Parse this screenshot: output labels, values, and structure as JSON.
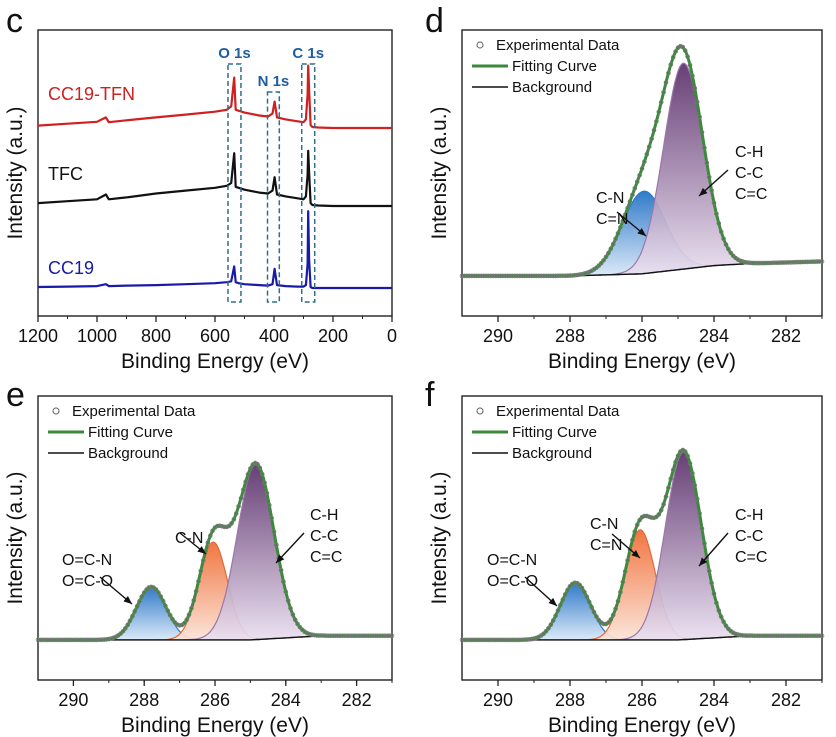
{
  "colors": {
    "experimental": "#777777",
    "fitting": "#3a8a3a",
    "background_line": "#111111",
    "blue_fill_top": "#1f6fc4",
    "blue_fill_bottom": "#d8e8f8",
    "orange_fill_top": "#f06a32",
    "orange_fill_bottom": "#fbe3d6",
    "purple_fill_top": "#5a2f6a",
    "purple_fill_bottom": "#eadff0",
    "survey_red": "#d02020",
    "survey_black": "#111111",
    "survey_blue": "#1a1aa8",
    "peak_box": "#2e6f8a",
    "peak_label": "#1e5fa0"
  },
  "chart_data": [
    {
      "panel_letter": "c",
      "type": "line",
      "xlabel": "Binding Energy (eV)",
      "ylabel": "Intensity (a.u.)",
      "xlim": [
        1200,
        0
      ],
      "x_reversed": true,
      "xticks": [
        "1200",
        "1000",
        "800",
        "600",
        "400",
        "200",
        "0"
      ],
      "series": [
        {
          "name": "CC19-TFN",
          "offset": 2.0,
          "color": "#d02020",
          "x": [
            1200,
            1100,
            1000,
            970,
            960,
            900,
            800,
            700,
            600,
            560,
            545,
            535,
            530,
            520,
            500,
            450,
            420,
            405,
            398,
            390,
            360,
            320,
            300,
            292,
            286,
            284,
            281,
            276,
            270,
            250,
            200,
            100,
            0
          ],
          "y": [
            0.05,
            0.09,
            0.13,
            0.22,
            0.12,
            0.16,
            0.22,
            0.28,
            0.34,
            0.38,
            0.45,
            1.05,
            0.38,
            0.36,
            0.32,
            0.26,
            0.24,
            0.3,
            0.55,
            0.22,
            0.18,
            0.14,
            0.12,
            0.18,
            0.7,
            1.3,
            0.8,
            0.06,
            0.02,
            0.01,
            0.0,
            0.0,
            0.0
          ]
        },
        {
          "name": "TFC",
          "offset": 1.0,
          "color": "#111111",
          "x": [
            1200,
            1100,
            1000,
            970,
            960,
            900,
            800,
            700,
            600,
            560,
            545,
            535,
            530,
            520,
            500,
            450,
            420,
            405,
            398,
            390,
            360,
            320,
            300,
            292,
            286,
            284,
            281,
            276,
            270,
            250,
            200,
            100,
            0
          ],
          "y": [
            0.06,
            0.1,
            0.14,
            0.24,
            0.14,
            0.18,
            0.26,
            0.32,
            0.38,
            0.42,
            0.48,
            1.1,
            0.4,
            0.38,
            0.34,
            0.28,
            0.26,
            0.32,
            0.6,
            0.24,
            0.2,
            0.16,
            0.14,
            0.2,
            0.65,
            1.15,
            0.7,
            0.06,
            0.02,
            0.01,
            0.0,
            0.0,
            0.0
          ]
        },
        {
          "name": "CC19",
          "offset": 0.0,
          "color": "#1a1aa8",
          "x": [
            1200,
            1100,
            1000,
            970,
            960,
            900,
            800,
            700,
            600,
            560,
            545,
            535,
            530,
            520,
            500,
            450,
            420,
            405,
            398,
            390,
            360,
            320,
            300,
            292,
            286,
            284,
            281,
            276,
            270,
            250,
            200,
            100,
            0
          ],
          "y": [
            0.02,
            0.03,
            0.04,
            0.08,
            0.04,
            0.05,
            0.06,
            0.08,
            0.1,
            0.12,
            0.14,
            0.45,
            0.12,
            0.1,
            0.08,
            0.06,
            0.05,
            0.08,
            0.4,
            0.06,
            0.04,
            0.03,
            0.03,
            0.06,
            0.5,
            1.6,
            0.6,
            0.02,
            0.0,
            0.0,
            0.0,
            0.0,
            0.0
          ]
        }
      ],
      "peak_markers": [
        {
          "label": "O 1s",
          "x_range": [
            556,
            512
          ]
        },
        {
          "label": "N 1s",
          "x_range": [
            422,
            382
          ]
        },
        {
          "label": "C 1s",
          "x_range": [
            306,
            262
          ]
        }
      ]
    },
    {
      "panel_letter": "d",
      "type": "line",
      "xlabel": "Binding Energy (eV)",
      "ylabel": "Intensity (a.u.)",
      "xlim": [
        291,
        281
      ],
      "x_reversed": true,
      "xticks": [
        "290",
        "288",
        "286",
        "284",
        "282"
      ],
      "legend": [
        "Experimental Data",
        "Fitting Curve",
        "Background"
      ],
      "background": {
        "x": [
          291,
          288,
          286,
          285,
          284,
          283,
          281
        ],
        "y": [
          0.02,
          0.02,
          0.03,
          0.05,
          0.07,
          0.08,
          0.09
        ]
      },
      "components": [
        {
          "label": "C-N\nC=N",
          "color": "blue",
          "center": 285.95,
          "sigma": 0.6,
          "height": 0.4
        },
        {
          "label": "C-H\nC-C\nC=C",
          "color": "purple",
          "center": 284.85,
          "sigma": 0.55,
          "height": 1.0
        }
      ]
    },
    {
      "panel_letter": "e",
      "type": "line",
      "xlabel": "Binding Energy (eV)",
      "ylabel": "Intensity (a.u.)",
      "xlim": [
        291,
        281
      ],
      "x_reversed": true,
      "xticks": [
        "290",
        "288",
        "286",
        "284",
        "282"
      ],
      "legend": [
        "Experimental Data",
        "Fitting Curve",
        "Background"
      ],
      "background": {
        "x": [
          291,
          288,
          286,
          285,
          284,
          283,
          281
        ],
        "y": [
          0.02,
          0.02,
          0.02,
          0.02,
          0.03,
          0.04,
          0.04
        ]
      },
      "components": [
        {
          "label": "O=C-N\nO=C-O",
          "color": "blue",
          "center": 287.8,
          "sigma": 0.42,
          "height": 0.26
        },
        {
          "label": "C-N",
          "color": "orange",
          "center": 286.05,
          "sigma": 0.4,
          "height": 0.48
        },
        {
          "label": "C-H\nC-C\nC=C",
          "color": "purple",
          "center": 284.85,
          "sigma": 0.52,
          "height": 0.86
        }
      ]
    },
    {
      "panel_letter": "f",
      "type": "line",
      "xlabel": "Binding Energy (eV)",
      "ylabel": "Intensity (a.u.)",
      "xlim": [
        291,
        281
      ],
      "x_reversed": true,
      "xticks": [
        "290",
        "288",
        "286",
        "284",
        "282"
      ],
      "legend": [
        "Experimental Data",
        "Fitting Curve",
        "Background"
      ],
      "background": {
        "x": [
          291,
          288,
          286,
          285,
          284,
          283,
          281
        ],
        "y": [
          0.02,
          0.02,
          0.02,
          0.02,
          0.03,
          0.04,
          0.04
        ]
      },
      "components": [
        {
          "label": "O=C-N\nO=C-O",
          "color": "blue",
          "center": 287.85,
          "sigma": 0.42,
          "height": 0.28
        },
        {
          "label": "C-N\nC=N",
          "color": "orange",
          "center": 286.05,
          "sigma": 0.42,
          "height": 0.54
        },
        {
          "label": "C-H\nC-C\nC=C",
          "color": "purple",
          "center": 284.85,
          "sigma": 0.5,
          "height": 0.92
        }
      ]
    }
  ]
}
